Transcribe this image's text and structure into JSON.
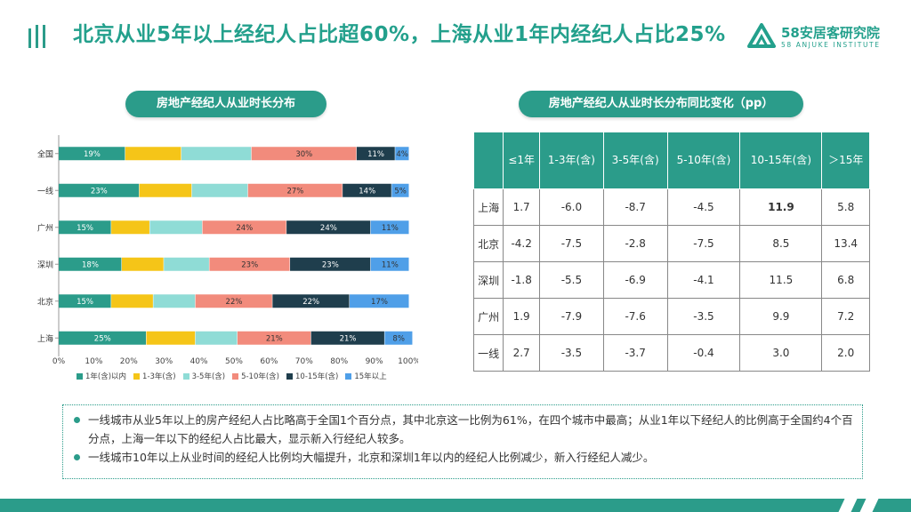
{
  "header": {
    "title": "北京从业5年以上经纪人占比超60%，上海从业1年内经纪人占比25%",
    "brand_name": "58安居客研究院",
    "brand_sub": "58 ANJUKE INSTITUTE"
  },
  "left_panel": {
    "title": "房地产经纪人从业时长分布"
  },
  "right_panel": {
    "title": "房地产经纪人从业时长分布同比变化（pp）",
    "columns": [
      "",
      "≤1年",
      "1-3年(含)",
      "3-5年(含)",
      "5-10年(含)",
      "10-15年(含)",
      "＞15年"
    ],
    "rows": [
      [
        "上海",
        "1.7",
        "-6.0",
        "-8.7",
        "-4.5",
        "11.9",
        "5.8"
      ],
      [
        "北京",
        "-4.2",
        "-7.5",
        "-2.8",
        "-7.5",
        "8.5",
        "13.4"
      ],
      [
        "深圳",
        "-1.8",
        "-5.5",
        "-6.9",
        "-4.1",
        "11.5",
        "6.8"
      ],
      [
        "广州",
        "1.9",
        "-7.9",
        "-7.6",
        "-3.5",
        "9.9",
        "7.2"
      ],
      [
        "一线",
        "2.7",
        "-3.5",
        "-3.7",
        "-0.4",
        "3.0",
        "2.0"
      ]
    ]
  },
  "chart_data": {
    "type": "bar",
    "orientation": "horizontal-stacked",
    "categories": [
      "全国",
      "一线",
      "广州",
      "深圳",
      "北京",
      "上海"
    ],
    "series": [
      {
        "name": "1年(含)以内",
        "color": "#2b9c8a",
        "values": [
          19,
          23,
          15,
          18,
          15,
          25
        ],
        "labels": [
          "19%",
          "23%",
          "15%",
          "18%",
          "15%",
          "25%"
        ]
      },
      {
        "name": "1-3年(含)",
        "color": "#f5c518",
        "values": [
          16,
          15,
          11,
          12,
          12,
          14
        ],
        "labels": [
          "",
          "",
          "",
          "",
          "",
          ""
        ]
      },
      {
        "name": "3-5年(含)",
        "color": "#8fdcd6",
        "values": [
          20,
          16,
          15,
          13,
          12,
          12
        ],
        "labels": [
          "",
          "",
          "",
          "",
          "",
          ""
        ]
      },
      {
        "name": "5-10年(含)",
        "color": "#f28b7c",
        "values": [
          30,
          27,
          24,
          23,
          22,
          21
        ],
        "labels": [
          "30%",
          "27%",
          "24%",
          "23%",
          "22%",
          "21%"
        ]
      },
      {
        "name": "10-15年(含)",
        "color": "#1f3e4d",
        "values": [
          11,
          14,
          24,
          23,
          22,
          21
        ],
        "labels": [
          "11%",
          "14%",
          "24%",
          "23%",
          "22%",
          "21%"
        ]
      },
      {
        "name": "15年以上",
        "color": "#4f9fe8",
        "values": [
          4,
          5,
          11,
          11,
          17,
          8
        ],
        "labels": [
          "4%",
          "5%",
          "11%",
          "11%",
          "17%",
          "8%"
        ]
      }
    ],
    "x_ticks": [
      "0%",
      "10%",
      "20%",
      "30%",
      "40%",
      "50%",
      "60%",
      "70%",
      "80%",
      "90%",
      "100%"
    ],
    "xlim": [
      0,
      100
    ],
    "legend_position": "bottom"
  },
  "notes": [
    "一线城市从业5年以上的房产经纪人占比略高于全国1个百分点，其中北京这一比例为61%，在四个城市中最高；从业1年以下经纪人的比例高于全国约4个百分点，上海一年以下的经纪人占比最大，显示新入行经纪人较多。",
    "一线城市10年以上从业时间的经纪人比例均大幅提升，北京和深圳1年以内的经纪人比例减少，新入行经纪人减少。"
  ]
}
